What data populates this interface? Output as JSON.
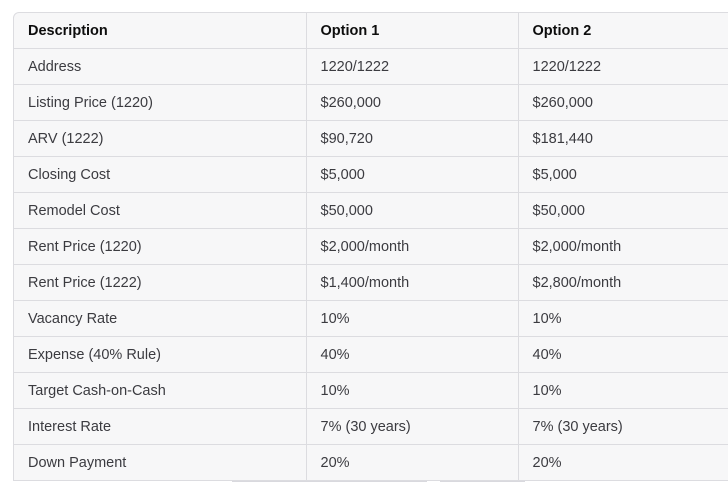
{
  "table": {
    "headers": [
      "Description",
      "Option 1",
      "Option 2"
    ],
    "rows": [
      [
        "Address",
        "1220/1222",
        "1220/1222"
      ],
      [
        "Listing Price (1220)",
        "$260,000",
        "$260,000"
      ],
      [
        "ARV (1222)",
        "$90,720",
        "$181,440"
      ],
      [
        "Closing Cost",
        "$5,000",
        "$5,000"
      ],
      [
        "Remodel Cost",
        "$50,000",
        "$50,000"
      ],
      [
        "Rent Price (1220)",
        "$2,000/month",
        "$2,000/month"
      ],
      [
        "Rent Price (1222)",
        "$1,400/month",
        "$2,800/month"
      ],
      [
        "Vacancy Rate",
        "10%",
        "10%"
      ],
      [
        "Expense (40% Rule)",
        "40%",
        "40%"
      ],
      [
        "Target Cash-on-Cash",
        "10%",
        "10%"
      ],
      [
        "Interest Rate",
        "7% (30 years)",
        "7% (30 years)"
      ],
      [
        "Down Payment",
        "20%",
        "20%"
      ]
    ]
  },
  "colors": {
    "table_background": "#f7f7f8",
    "border": "#dcdce0",
    "header_text": "#0d0d0d",
    "cell_text": "#3b3b40"
  }
}
